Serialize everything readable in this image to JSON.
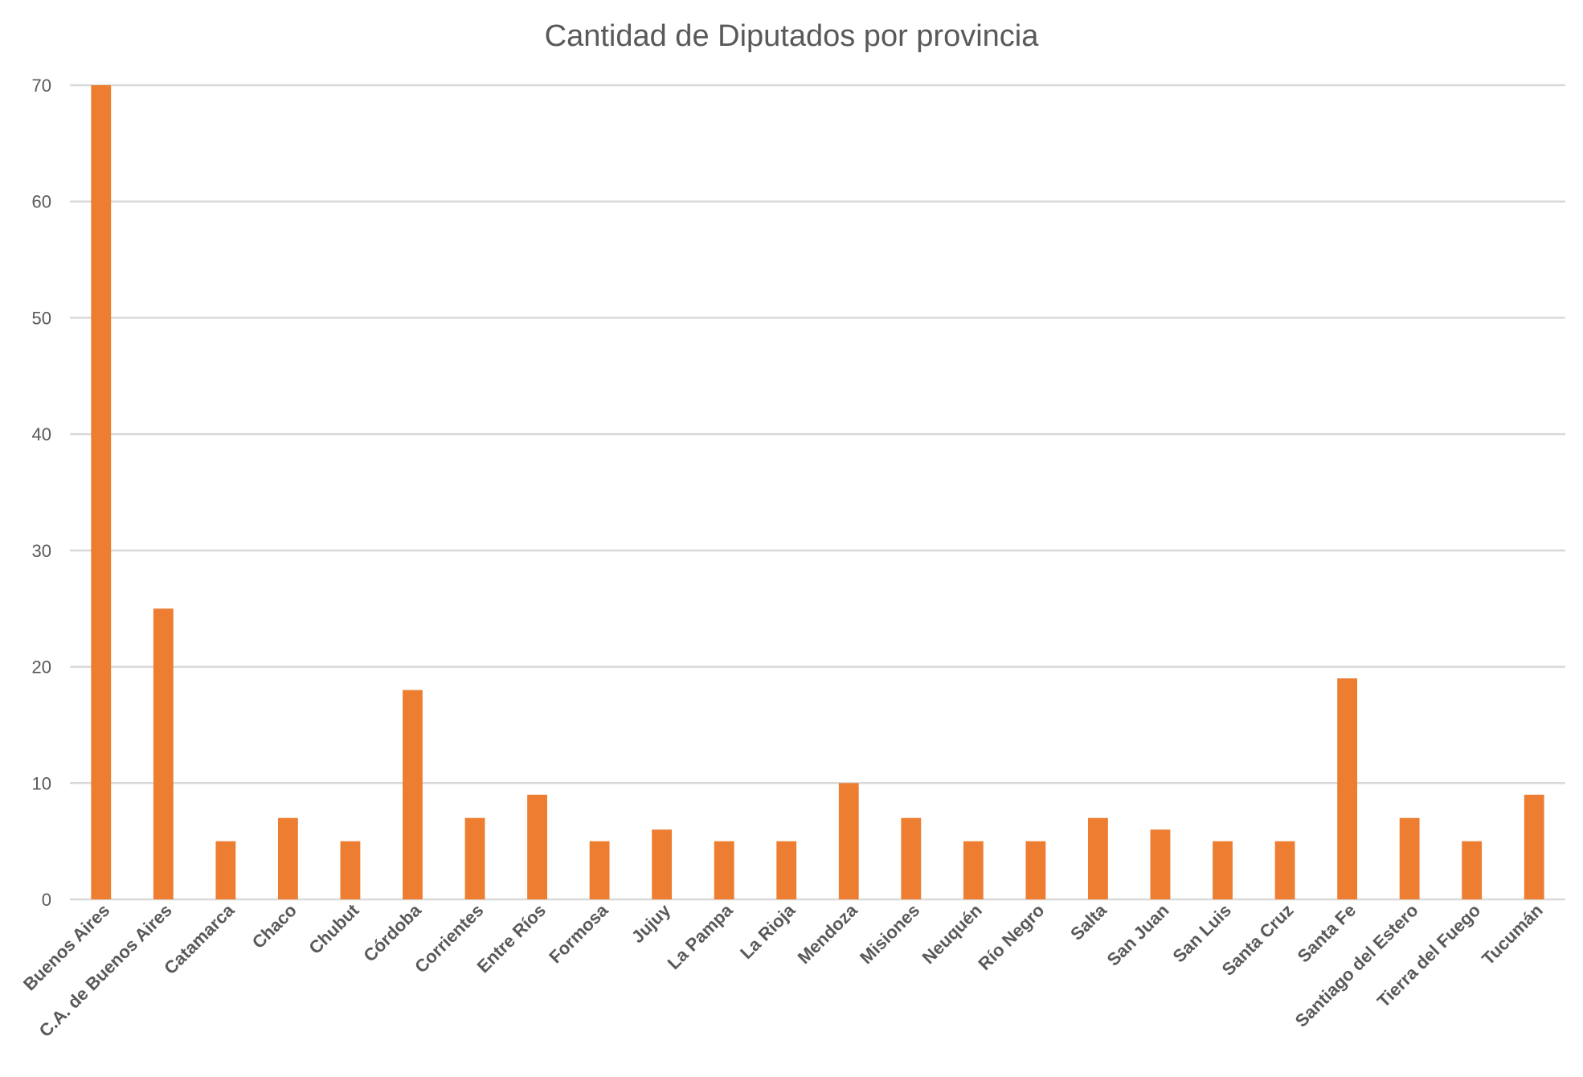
{
  "chart_data": {
    "type": "bar",
    "title": "Cantidad de Diputados por provincia",
    "xlabel": "",
    "ylabel": "",
    "ylim": [
      0,
      70
    ],
    "yticks": [
      0,
      10,
      20,
      30,
      40,
      50,
      60,
      70
    ],
    "grid": true,
    "legend": "none",
    "bar_color": "#ED7D31",
    "categories": [
      "Buenos Aires",
      "C.A. de Buenos Aires",
      "Catamarca",
      "Chaco",
      "Chubut",
      "Córdoba",
      "Corrientes",
      "Entre Ríos",
      "Formosa",
      "Jujuy",
      "La Pampa",
      "La Rioja",
      "Mendoza",
      "Misiones",
      "Neuquén",
      "Río Negro",
      "Salta",
      "San Juan",
      "San Luis",
      "Santa Cruz",
      "Santa Fe",
      "Santiago del Estero",
      "Tierra del Fuego",
      "Tucumán"
    ],
    "values": [
      70,
      25,
      5,
      7,
      5,
      18,
      7,
      9,
      5,
      6,
      5,
      5,
      10,
      7,
      5,
      5,
      7,
      6,
      5,
      5,
      19,
      7,
      5,
      9
    ]
  }
}
